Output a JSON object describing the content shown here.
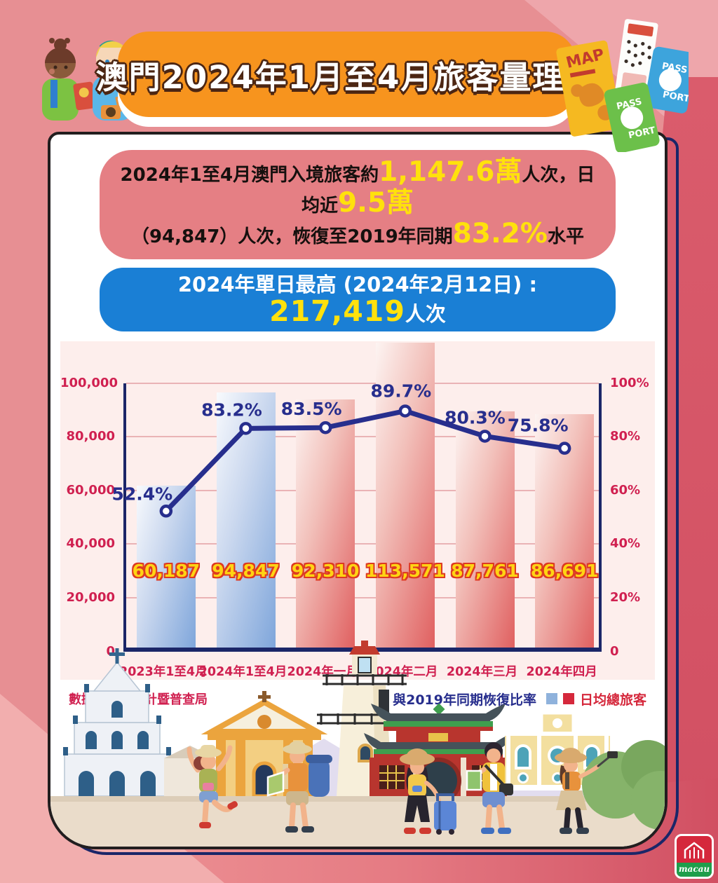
{
  "header": {
    "title": "澳門2024年1月至4月旅客量理想"
  },
  "decor": {
    "map_label": "MAP",
    "passport_green": [
      "PASS",
      "PORT"
    ],
    "passport_blue": [
      "PASS",
      "PORT"
    ],
    "logo_text": "macau"
  },
  "banners": {
    "summary_line1": [
      {
        "text": "2024年1至4月澳門入境旅客約",
        "style": "dark"
      },
      {
        "text": "1,147.6萬",
        "style": "highlight"
      },
      {
        "text": "人次，日均近",
        "style": "dark"
      },
      {
        "text": "9.5萬",
        "style": "highlight"
      }
    ],
    "summary_line2": [
      {
        "text": "（94,847）人次，恢復至2019年同期",
        "style": "dark"
      },
      {
        "text": "83.2%",
        "style": "highlight"
      },
      {
        "text": "水平",
        "style": "dark"
      }
    ],
    "peak": [
      {
        "text": "2024年單日最高 (2024年2月12日) : ",
        "style": "light"
      },
      {
        "text": "217,419",
        "style": "highlight"
      },
      {
        "text": "人次",
        "style": "light"
      }
    ]
  },
  "chart_data": {
    "type": "bar+line",
    "categories": [
      "2023年1至4月",
      "2024年1至4月",
      "2024年一月",
      "2024年二月",
      "2024年三月",
      "2024年四月"
    ],
    "series": [
      {
        "name": "日均總旅客",
        "type": "bar",
        "axis": "left",
        "values": [
          60187,
          94847,
          92310,
          113571,
          87761,
          86691
        ],
        "value_labels": [
          "60,187",
          "94,847",
          "92,310",
          "113,571",
          "87,761",
          "86,691"
        ],
        "bar_colors": [
          "blue",
          "blue",
          "red",
          "red",
          "red",
          "red"
        ]
      },
      {
        "name": "與2019年同期恢復比率",
        "type": "line",
        "axis": "right",
        "values": [
          52.4,
          83.2,
          83.5,
          89.7,
          80.3,
          75.8
        ],
        "point_labels": [
          "52.4%",
          "83.2%",
          "83.5%",
          "89.7%",
          "80.3%",
          "75.8%"
        ]
      }
    ],
    "left_axis": {
      "min": 0,
      "max": 100000,
      "ticks": [
        "100,000",
        "80,000",
        "60,000",
        "40,000",
        "20,000",
        "0"
      ]
    },
    "right_axis": {
      "min": 0,
      "max": 100,
      "ticks": [
        "100%",
        "80%",
        "60%",
        "40%",
        "20%",
        "0"
      ]
    },
    "grid": true,
    "legend_position": "bottom-right"
  },
  "footer": {
    "source": "數據來源：統計暨普查局",
    "legend": [
      {
        "marker": "line-point",
        "label": "與2019年同期恢復比率"
      },
      {
        "marker": "bars",
        "label": "日均總旅客"
      }
    ]
  },
  "colors": {
    "banner_orange": "#f7941e",
    "banner_pink": "#e57f84",
    "banner_blue": "#1a7fd5",
    "navy_line": "#272e8d",
    "crimson_text": "#d02050",
    "highlight_yellow": "#ffe10c",
    "bar_blue": "#7fa6db",
    "bar_red": "#e06060",
    "panel_bg": "#fdeeec"
  }
}
